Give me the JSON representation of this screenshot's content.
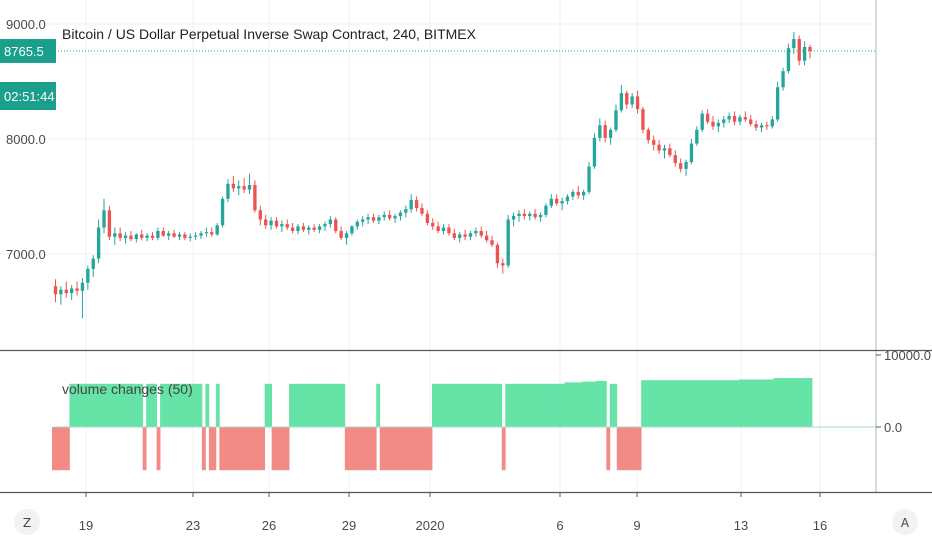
{
  "chart_data": [
    {
      "type": "candlestick",
      "title": "Bitcoin / US Dollar Perpetual Inverse Swap Contract, 240, BITMEX",
      "y_ticks": [
        "9000.0",
        "8000.0",
        "7000.0"
      ],
      "y_tick_values": [
        9000,
        8000,
        7000
      ],
      "ylim": [
        6350,
        9140
      ],
      "last_price": "8765.5",
      "last_price_value": 8765.5,
      "countdown": "02:51:44",
      "candles": [
        [
          6720,
          6780,
          6580,
          6650
        ],
        [
          6650,
          6720,
          6560,
          6690
        ],
        [
          6690,
          6760,
          6620,
          6660
        ],
        [
          6660,
          6730,
          6600,
          6700
        ],
        [
          6700,
          6760,
          6640,
          6680
        ],
        [
          6680,
          6790,
          6440,
          6750
        ],
        [
          6750,
          6900,
          6690,
          6870
        ],
        [
          6870,
          6990,
          6800,
          6960
        ],
        [
          6960,
          7300,
          6920,
          7230
        ],
        [
          7230,
          7480,
          7180,
          7380
        ],
        [
          7380,
          7420,
          7120,
          7150
        ],
        [
          7150,
          7230,
          7080,
          7180
        ],
        [
          7180,
          7230,
          7110,
          7140
        ],
        [
          7140,
          7190,
          7090,
          7160
        ],
        [
          7160,
          7200,
          7110,
          7130
        ],
        [
          7130,
          7180,
          7100,
          7170
        ],
        [
          7170,
          7210,
          7120,
          7140
        ],
        [
          7140,
          7180,
          7110,
          7160
        ],
        [
          7160,
          7190,
          7120,
          7140
        ],
        [
          7140,
          7230,
          7120,
          7200
        ],
        [
          7200,
          7230,
          7150,
          7160
        ],
        [
          7160,
          7200,
          7120,
          7180
        ],
        [
          7180,
          7210,
          7140,
          7150
        ],
        [
          7150,
          7190,
          7120,
          7170
        ],
        [
          7170,
          7190,
          7120,
          7140
        ],
        [
          7140,
          7180,
          7110,
          7150
        ],
        [
          7150,
          7190,
          7120,
          7160
        ],
        [
          7160,
          7200,
          7130,
          7180
        ],
        [
          7180,
          7230,
          7150,
          7190
        ],
        [
          7190,
          7230,
          7150,
          7170
        ],
        [
          7170,
          7270,
          7160,
          7250
        ],
        [
          7250,
          7500,
          7230,
          7480
        ],
        [
          7480,
          7650,
          7450,
          7610
        ],
        [
          7610,
          7680,
          7540,
          7570
        ],
        [
          7570,
          7640,
          7510,
          7590
        ],
        [
          7590,
          7660,
          7530,
          7560
        ],
        [
          7560,
          7700,
          7520,
          7600
        ],
        [
          7600,
          7640,
          7360,
          7380
        ],
        [
          7380,
          7420,
          7250,
          7300
        ],
        [
          7300,
          7340,
          7220,
          7250
        ],
        [
          7250,
          7320,
          7210,
          7290
        ],
        [
          7290,
          7320,
          7220,
          7240
        ],
        [
          7240,
          7290,
          7190,
          7260
        ],
        [
          7260,
          7300,
          7210,
          7230
        ],
        [
          7230,
          7270,
          7180,
          7200
        ],
        [
          7200,
          7260,
          7170,
          7240
        ],
        [
          7240,
          7270,
          7190,
          7210
        ],
        [
          7210,
          7250,
          7170,
          7230
        ],
        [
          7230,
          7260,
          7190,
          7210
        ],
        [
          7210,
          7260,
          7180,
          7240
        ],
        [
          7240,
          7280,
          7200,
          7260
        ],
        [
          7260,
          7330,
          7230,
          7300
        ],
        [
          7300,
          7320,
          7180,
          7200
        ],
        [
          7200,
          7240,
          7120,
          7140
        ],
        [
          7140,
          7200,
          7080,
          7180
        ],
        [
          7180,
          7250,
          7160,
          7240
        ],
        [
          7240,
          7300,
          7210,
          7280
        ],
        [
          7280,
          7330,
          7240,
          7300
        ],
        [
          7300,
          7350,
          7260,
          7320
        ],
        [
          7320,
          7350,
          7270,
          7290
        ],
        [
          7290,
          7340,
          7260,
          7320
        ],
        [
          7320,
          7370,
          7290,
          7340
        ],
        [
          7340,
          7380,
          7290,
          7310
        ],
        [
          7310,
          7350,
          7270,
          7330
        ],
        [
          7330,
          7380,
          7290,
          7360
        ],
        [
          7360,
          7420,
          7320,
          7390
        ],
        [
          7390,
          7520,
          7360,
          7470
        ],
        [
          7470,
          7500,
          7370,
          7400
        ],
        [
          7400,
          7440,
          7330,
          7350
        ],
        [
          7350,
          7380,
          7250,
          7270
        ],
        [
          7270,
          7310,
          7210,
          7240
        ],
        [
          7240,
          7280,
          7180,
          7200
        ],
        [
          7200,
          7260,
          7170,
          7230
        ],
        [
          7230,
          7260,
          7160,
          7180
        ],
        [
          7180,
          7220,
          7120,
          7140
        ],
        [
          7140,
          7190,
          7100,
          7170
        ],
        [
          7170,
          7210,
          7120,
          7150
        ],
        [
          7150,
          7200,
          7120,
          7180
        ],
        [
          7180,
          7230,
          7150,
          7200
        ],
        [
          7200,
          7240,
          7140,
          7160
        ],
        [
          7160,
          7200,
          7100,
          7120
        ],
        [
          7120,
          7160,
          7060,
          7080
        ],
        [
          7080,
          7100,
          6880,
          6920
        ],
        [
          6920,
          6960,
          6830,
          6900
        ],
        [
          6900,
          7340,
          6880,
          7300
        ],
        [
          7300,
          7360,
          7240,
          7330
        ],
        [
          7330,
          7380,
          7280,
          7350
        ],
        [
          7350,
          7390,
          7300,
          7330
        ],
        [
          7330,
          7370,
          7290,
          7350
        ],
        [
          7350,
          7390,
          7300,
          7320
        ],
        [
          7320,
          7360,
          7280,
          7340
        ],
        [
          7340,
          7440,
          7320,
          7420
        ],
        [
          7420,
          7520,
          7400,
          7480
        ],
        [
          7480,
          7520,
          7420,
          7440
        ],
        [
          7440,
          7490,
          7380,
          7460
        ],
        [
          7460,
          7520,
          7430,
          7500
        ],
        [
          7500,
          7560,
          7470,
          7540
        ],
        [
          7540,
          7590,
          7480,
          7510
        ],
        [
          7510,
          7560,
          7470,
          7540
        ],
        [
          7540,
          7800,
          7520,
          7760
        ],
        [
          7760,
          8050,
          7740,
          8010
        ],
        [
          8010,
          8180,
          7980,
          8120
        ],
        [
          8120,
          8160,
          7970,
          8010
        ],
        [
          8010,
          8100,
          7950,
          8080
        ],
        [
          8080,
          8300,
          8060,
          8250
        ],
        [
          8250,
          8470,
          8230,
          8400
        ],
        [
          8400,
          8420,
          8260,
          8300
        ],
        [
          8300,
          8400,
          8270,
          8370
        ],
        [
          8370,
          8420,
          8220,
          8260
        ],
        [
          8260,
          8280,
          8050,
          8080
        ],
        [
          8080,
          8100,
          7960,
          7990
        ],
        [
          7990,
          8030,
          7900,
          7950
        ],
        [
          7950,
          7990,
          7870,
          7900
        ],
        [
          7900,
          7950,
          7830,
          7920
        ],
        [
          7920,
          7960,
          7840,
          7860
        ],
        [
          7860,
          7900,
          7760,
          7790
        ],
        [
          7790,
          7830,
          7710,
          7740
        ],
        [
          7740,
          7820,
          7680,
          7800
        ],
        [
          7800,
          8000,
          7780,
          7960
        ],
        [
          7960,
          8110,
          7940,
          8080
        ],
        [
          8080,
          8250,
          8060,
          8220
        ],
        [
          8220,
          8260,
          8130,
          8150
        ],
        [
          8150,
          8200,
          8080,
          8110
        ],
        [
          8110,
          8170,
          8060,
          8140
        ],
        [
          8140,
          8200,
          8100,
          8170
        ],
        [
          8170,
          8230,
          8140,
          8200
        ],
        [
          8200,
          8240,
          8120,
          8150
        ],
        [
          8150,
          8210,
          8120,
          8190
        ],
        [
          8190,
          8240,
          8150,
          8170
        ],
        [
          8170,
          8210,
          8110,
          8130
        ],
        [
          8130,
          8160,
          8070,
          8100
        ],
        [
          8100,
          8140,
          8060,
          8120
        ],
        [
          8120,
          8150,
          8080,
          8110
        ],
        [
          8110,
          8200,
          8090,
          8170
        ],
        [
          8170,
          8500,
          8150,
          8450
        ],
        [
          8450,
          8620,
          8420,
          8590
        ],
        [
          8590,
          8830,
          8570,
          8790
        ],
        [
          8790,
          8930,
          8740,
          8870
        ],
        [
          8870,
          8900,
          8640,
          8680
        ],
        [
          8680,
          8850,
          8640,
          8800
        ],
        [
          8800,
          8820,
          8700,
          8765.5
        ]
      ]
    },
    {
      "type": "bar",
      "title": "volume changes (50)",
      "y_ticks": [
        "10000.0",
        "0.0"
      ],
      "y_tick_values": [
        10000,
        0
      ],
      "ylim": [
        -6500,
        10100
      ],
      "values": [
        -6000,
        -6000,
        -6000,
        -6000,
        -6000,
        6000,
        6000,
        6000,
        6000,
        6000,
        6000,
        6000,
        6000,
        6000,
        6000,
        6000,
        6000,
        6000,
        6000,
        6000,
        6000,
        6000,
        6000,
        6000,
        6000,
        6000,
        -6000,
        6000,
        6000,
        6000,
        -6000,
        6000,
        6000,
        6000,
        6000,
        6000,
        6000,
        6000,
        6000,
        6000,
        6000,
        6000,
        6000,
        -6000,
        6000,
        -6000,
        -6000,
        6000,
        -6000,
        -6000,
        -6000,
        -6000,
        -6000,
        -6000,
        -6000,
        -6000,
        -6000,
        -6000,
        -6000,
        -6000,
        -6000,
        6000,
        6000,
        -6000,
        -6000,
        -6000,
        -6000,
        -6000,
        6000,
        6000,
        6000,
        6000,
        6000,
        6000,
        6000,
        6000,
        6000,
        6000,
        6000,
        6000,
        6000,
        6000,
        6000,
        6000,
        -6000,
        -6000,
        -6000,
        -6000,
        -6000,
        -6000,
        -6000,
        -6000,
        -6000,
        6000,
        -6000,
        -6000,
        -6000,
        -6000,
        -6000,
        -6000,
        -6000,
        -6000,
        -6000,
        -6000,
        -6000,
        -6000,
        -6000,
        -6000,
        -6000,
        6000,
        6000,
        6000,
        6000,
        6000,
        6000,
        6000,
        6000,
        6000,
        6000,
        6000,
        6000,
        6000,
        6000,
        6000,
        6000,
        6000,
        6000,
        6000,
        6000,
        -6000,
        6000,
        6000,
        6000,
        6000,
        6000,
        6000,
        6000,
        6000,
        6000,
        6000,
        6000,
        6000,
        6000,
        6000,
        6000,
        6000,
        6000,
        6200,
        6200,
        6200,
        6200,
        6200,
        6300,
        6300,
        6300,
        6300,
        6400,
        6400,
        6400,
        -6000,
        6000,
        6000,
        -6000,
        -6000,
        -6000,
        -6000,
        -6000,
        -6000,
        -6000,
        6500,
        6500,
        6500,
        6500,
        6500,
        6500,
        6500,
        6500,
        6500,
        6500,
        6500,
        6500,
        6500,
        6500,
        6500,
        6500,
        6500,
        6500,
        6500,
        6500,
        6500,
        6500,
        6500,
        6500,
        6500,
        6500,
        6500,
        6500,
        6600,
        6600,
        6600,
        6600,
        6600,
        6600,
        6600,
        6600,
        6600,
        6600,
        6800,
        6800,
        6800,
        6800,
        6800,
        6800,
        6800,
        6800,
        6800,
        6800,
        6800
      ]
    }
  ],
  "x_ticks": [
    "19",
    "23",
    "26",
    "29",
    "2020",
    "6",
    "9",
    "13",
    "16"
  ],
  "x_tick_positions": [
    2.7,
    9.9,
    15.3,
    20.7,
    26.1,
    37.4,
    42.8,
    50.0,
    55.4
  ],
  "colors": {
    "up": "#26a69a",
    "down": "#ef5350",
    "bar_up": "#66e3a7",
    "bar_down": "#f28b86",
    "tag_bg": "#1a9f8d",
    "grid": "#eef1f3",
    "price_line": "#26a69a"
  },
  "ui": {
    "corner_left": "Z",
    "corner_right": "A"
  }
}
